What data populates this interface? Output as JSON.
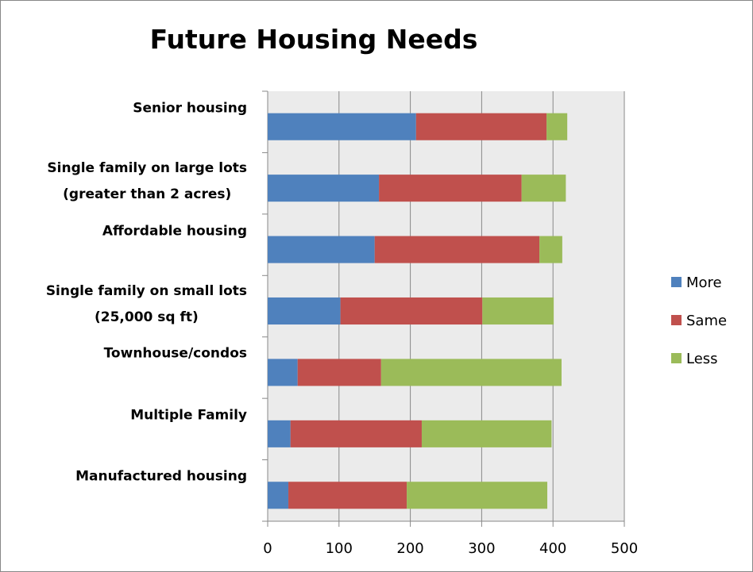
{
  "chart_data": {
    "type": "stacked_bar_horizontal",
    "title": "Future Housing Needs",
    "categories": [
      "Senior housing",
      "Single family on large lots\n(greater than 2 acres)",
      "Affordable housing",
      "Single family on small lots\n(25,000 sq ft)",
      "Townhouse/condos",
      "Multiple Family",
      "Manufactured housing"
    ],
    "series": [
      {
        "name": "More",
        "color": "#4f81bd",
        "values": [
          208,
          156,
          150,
          102,
          42,
          32,
          29
        ]
      },
      {
        "name": "Same",
        "color": "#c0504d",
        "values": [
          183,
          200,
          231,
          199,
          117,
          184,
          166
        ]
      },
      {
        "name": "Less",
        "color": "#9bbb59",
        "values": [
          29,
          62,
          32,
          100,
          253,
          182,
          197
        ]
      }
    ],
    "xlim": [
      0,
      500
    ],
    "xticks": [
      0,
      100,
      200,
      300,
      400,
      500
    ],
    "grid": true,
    "legend": "right"
  }
}
